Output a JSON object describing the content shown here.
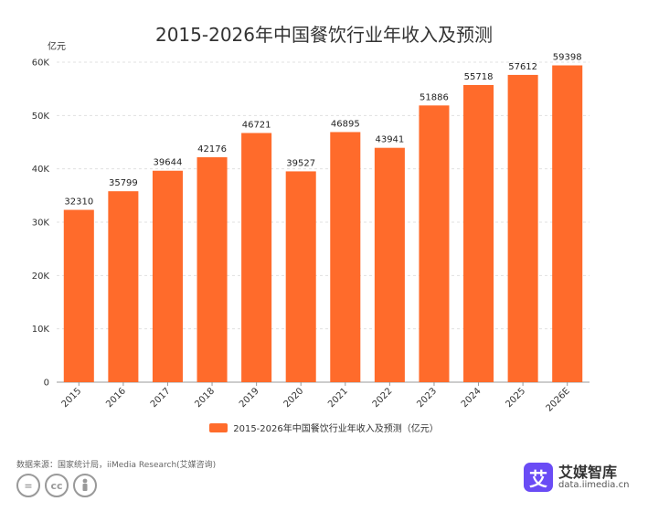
{
  "chart_data": {
    "type": "bar",
    "title": "2015-2026年中国餐饮行业年收入及预测",
    "ylabel": "亿元",
    "categories": [
      "2015",
      "2016",
      "2017",
      "2018",
      "2019",
      "2020",
      "2021",
      "2022",
      "2023",
      "2024",
      "2025",
      "2026E"
    ],
    "series": [
      {
        "name": "2015-2026年中国餐饮行业年收入及预测（亿元）",
        "values": [
          32310,
          35799,
          39644,
          42176,
          46721,
          39527,
          46895,
          43941,
          51886,
          55718,
          57612,
          59398
        ]
      }
    ],
    "ylim": [
      0,
      60000
    ],
    "yticks": [
      0,
      10000,
      20000,
      30000,
      40000,
      50000,
      60000
    ],
    "ytick_labels": [
      "0",
      "10K",
      "20K",
      "30K",
      "40K",
      "50K",
      "60K"
    ],
    "grid": true,
    "legend_position": "bottom",
    "bar_color": "#ff6b2b"
  },
  "source": "数据来源：国家统计局，iiMedia Research(艾媒咨询)",
  "brand": {
    "logo_char": "艾",
    "name": "艾媒智库",
    "url": "data.iimedia.cn"
  },
  "license_icons": [
    "equal-icon",
    "cc-icon",
    "person-icon"
  ]
}
